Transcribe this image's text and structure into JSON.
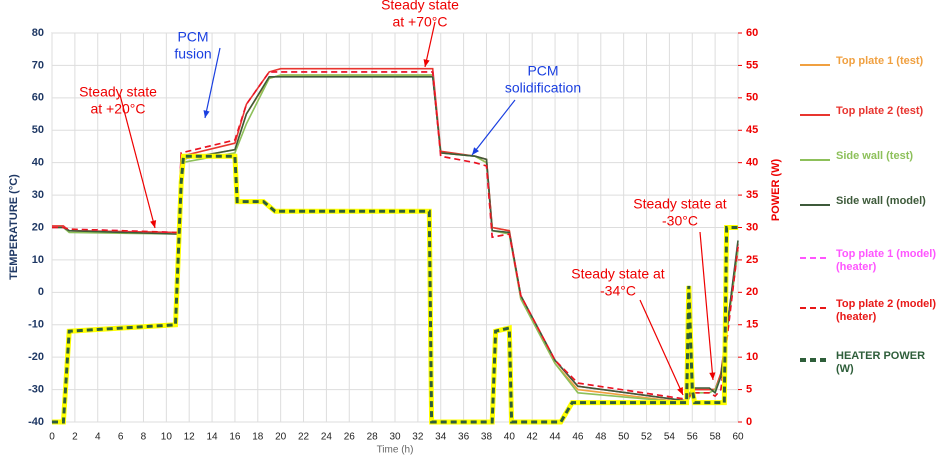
{
  "chart_data": {
    "type": "line",
    "x_label": "Time (h)",
    "y_label": "TEMPERATURE (°C)",
    "y2_label": "POWER (W)",
    "xlim": [
      0,
      60
    ],
    "xticks": [
      0,
      2,
      4,
      6,
      8,
      10,
      12,
      14,
      16,
      18,
      20,
      22,
      24,
      26,
      28,
      30,
      32,
      34,
      36,
      38,
      40,
      42,
      44,
      46,
      48,
      50,
      52,
      54,
      56,
      58,
      60
    ],
    "ylim": [
      -40,
      80
    ],
    "yticks": [
      -40,
      -30,
      -20,
      -10,
      0,
      10,
      20,
      30,
      40,
      50,
      60,
      70,
      80
    ],
    "y2lim": [
      0,
      60
    ],
    "y2ticks": [
      0,
      5,
      10,
      15,
      20,
      25,
      30,
      35,
      40,
      45,
      50,
      55,
      60
    ],
    "grid": true,
    "legend": "right",
    "series": [
      {
        "name": "Top plate 1 (test)",
        "color": "#f0a040",
        "dash": false,
        "x": [
          0,
          1,
          1.5,
          10.8,
          11,
          11.3,
          16,
          17,
          19,
          20,
          33,
          33.3,
          34,
          37,
          38,
          38.5,
          40,
          41,
          44,
          46,
          55.5,
          56,
          57.5,
          58,
          58.5,
          60
        ],
        "values": [
          20,
          20,
          19,
          18.5,
          18.5,
          41,
          44,
          55,
          66,
          67,
          67,
          67,
          43,
          42,
          40,
          20,
          19,
          -2,
          -22,
          -30,
          -34,
          -30,
          -30,
          -30,
          -25,
          14
        ]
      },
      {
        "name": "Top plate 2 (test)",
        "color": "#e8352f",
        "dash": false,
        "x": [
          0,
          1,
          1.5,
          10.8,
          11,
          11.3,
          16,
          17,
          19,
          20,
          33,
          33.3,
          34,
          37,
          38,
          38.5,
          40,
          41,
          44,
          46,
          55.5,
          56,
          57.5,
          58,
          58.5,
          60
        ],
        "values": [
          20.5,
          20.5,
          19,
          18.5,
          18.5,
          42,
          46,
          58,
          68,
          69,
          69,
          69,
          43.5,
          42,
          41,
          20,
          19,
          -1,
          -21,
          -29,
          -33.5,
          -30,
          -30,
          -30,
          -25,
          15
        ]
      },
      {
        "name": "Side wall (test)",
        "color": "#8dc05a",
        "dash": false,
        "x": [
          0,
          1,
          1.5,
          10.8,
          11,
          11.3,
          16,
          17,
          19,
          20,
          33,
          33.3,
          34,
          37,
          38,
          38.5,
          40,
          41,
          44,
          46,
          55.5,
          56,
          57.5,
          58,
          58.5,
          60
        ],
        "values": [
          20,
          20,
          18.5,
          18,
          18,
          40,
          43,
          52,
          66,
          67,
          67,
          67,
          43,
          42,
          40,
          19,
          18,
          -2,
          -22,
          -31,
          -34,
          -31,
          -31,
          -30,
          -26,
          13
        ]
      },
      {
        "name": "Side wall (model)",
        "color": "#3d5a3a",
        "dash": false,
        "x": [
          0,
          1,
          1.5,
          10.8,
          11,
          11.3,
          16,
          17,
          19,
          20,
          33,
          33.3,
          34,
          37,
          38,
          38.5,
          40,
          41,
          44,
          46,
          55.5,
          56,
          57.5,
          58,
          58.5,
          60
        ],
        "values": [
          20,
          20,
          19,
          18,
          18,
          41,
          44,
          55,
          66.5,
          66.5,
          66.5,
          66.5,
          43,
          42,
          41,
          19,
          18.5,
          -1,
          -21,
          -29,
          -33.5,
          -29.5,
          -29.5,
          -31,
          -26,
          16
        ]
      },
      {
        "name": "Top plate 1 (model)(heater)",
        "color": "#ff55ff",
        "dash": true,
        "x": [
          0,
          1,
          1.5,
          10.8,
          11,
          11.3,
          16,
          17,
          19,
          20,
          33,
          33.3,
          34,
          37,
          38,
          38.5,
          40,
          41,
          44,
          46,
          55.5,
          56,
          57.5,
          58,
          58.5,
          60
        ],
        "values": [
          20,
          20,
          19.5,
          18.5,
          18.5,
          43,
          47,
          58,
          68,
          68,
          68,
          68,
          42,
          40,
          39,
          17,
          18,
          -1,
          -21,
          -28,
          -33,
          -31,
          -31,
          -32,
          -30,
          14
        ]
      },
      {
        "name": "Top plate 2 (model)(heater)",
        "color": "#e81818",
        "dash": true,
        "x": [
          0,
          1,
          1.5,
          10.8,
          11,
          11.3,
          16,
          17,
          19,
          20,
          33,
          33.3,
          34,
          37,
          38,
          38.5,
          40,
          41,
          44,
          46,
          55.5,
          56,
          57.5,
          58,
          58.5,
          60
        ],
        "values": [
          20,
          20,
          19.5,
          18.5,
          18.5,
          43,
          47,
          58,
          68,
          68,
          68,
          68,
          42,
          40,
          39,
          17,
          18,
          -1,
          -21,
          -28,
          -33,
          -31,
          -31,
          -32,
          -30,
          14
        ]
      },
      {
        "name": "HEATER POWER (W)",
        "color": "#2e5e3a",
        "dash": true,
        "outline": "#ffff00",
        "axis": "y2",
        "x": [
          0,
          1,
          1.5,
          10.8,
          11.3,
          11.5,
          16,
          16.2,
          18.5,
          19.5,
          33,
          33.2,
          38.5,
          38.8,
          40,
          40.2,
          44.5,
          45.5,
          55.5,
          55.7,
          56,
          56.2,
          57.5,
          58.8,
          59,
          60
        ],
        "values": [
          0,
          0,
          14,
          15,
          37,
          41,
          41,
          34,
          34,
          32.5,
          32.5,
          0,
          0,
          14,
          14.5,
          0,
          0,
          3,
          3,
          21,
          5,
          3,
          3,
          3,
          30,
          30
        ]
      }
    ],
    "annotations": [
      {
        "lines": [
          "Steady state",
          "at +20°C"
        ]
      },
      {
        "lines": [
          "PCM",
          "fusion"
        ]
      },
      {
        "lines": [
          "Steady state",
          "at +70°C"
        ]
      },
      {
        "lines": [
          "PCM",
          "solidification"
        ]
      },
      {
        "lines": [
          "Steady state at",
          "-34°C"
        ]
      },
      {
        "lines": [
          "Steady state at",
          "-30°C"
        ]
      }
    ]
  }
}
